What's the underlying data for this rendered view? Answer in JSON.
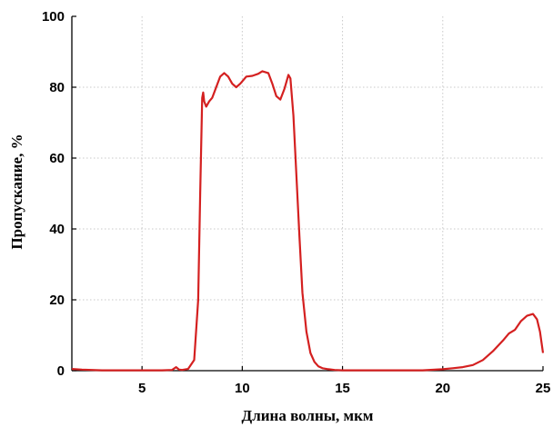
{
  "chart_data": {
    "type": "line",
    "title": "",
    "xlabel": "Длина волны, мкм",
    "ylabel": "Пропускание, %",
    "xlim": [
      1.5,
      25
    ],
    "ylim": [
      0,
      100
    ],
    "xticks": [
      5,
      10,
      15,
      20,
      25
    ],
    "yticks": [
      0,
      20,
      40,
      60,
      80,
      100
    ],
    "grid": true,
    "line_color": "#d42020",
    "series": [
      {
        "x": [
          1.5,
          2.0,
          3.0,
          4.0,
          5.0,
          6.0,
          6.5,
          6.7,
          6.85,
          7.0,
          7.3,
          7.6,
          7.8,
          7.9,
          8.0,
          8.05,
          8.1,
          8.2,
          8.35,
          8.5,
          8.7,
          8.9,
          9.1,
          9.3,
          9.5,
          9.7,
          9.9,
          10.2,
          10.5,
          10.8,
          11.0,
          11.3,
          11.5,
          11.7,
          11.9,
          12.1,
          12.3,
          12.4,
          12.55,
          12.7,
          12.85,
          13.0,
          13.2,
          13.4,
          13.6,
          13.8,
          14.0,
          14.3,
          14.6,
          15.0,
          16.0,
          17.0,
          18.0,
          19.0,
          20.0,
          20.5,
          21.0,
          21.5,
          22.0,
          22.5,
          23.0,
          23.3,
          23.6,
          23.9,
          24.2,
          24.5,
          24.7,
          24.85,
          25.0
        ],
        "values": [
          0.5,
          0.3,
          0.1,
          0.1,
          0.1,
          0.1,
          0.2,
          1.0,
          0.3,
          0.2,
          0.5,
          3.0,
          20.0,
          50.0,
          77.0,
          78.5,
          76.0,
          74.5,
          76.0,
          77.0,
          80.0,
          83.0,
          84.0,
          83.0,
          81.0,
          80.0,
          81.0,
          83.0,
          83.2,
          83.8,
          84.5,
          84.0,
          81.0,
          77.5,
          76.5,
          79.5,
          83.5,
          82.5,
          72.0,
          55.0,
          38.0,
          22.0,
          11.0,
          5.0,
          2.5,
          1.2,
          0.7,
          0.4,
          0.2,
          0.1,
          0.1,
          0.1,
          0.1,
          0.1,
          0.4,
          0.7,
          1.0,
          1.6,
          3.0,
          5.5,
          8.5,
          10.5,
          11.5,
          14.0,
          15.5,
          16.0,
          14.5,
          11.0,
          5.0
        ]
      }
    ]
  }
}
